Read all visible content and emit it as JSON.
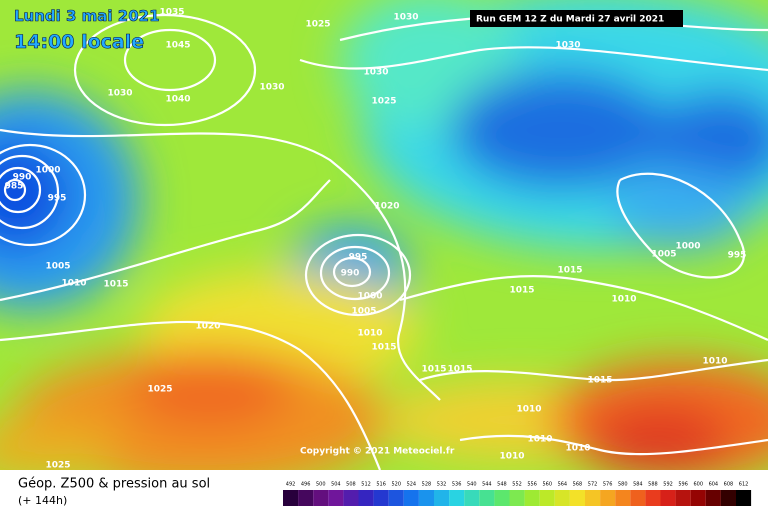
{
  "forecast": {
    "date": "Lundi 3 mai 2021",
    "time": "14:00 locale"
  },
  "run_info": "Run GEM 12 Z du Mardi 27 avril 2021",
  "copyright": "Copyright © 2021 Meteociel.fr",
  "footer": {
    "title": "Géop. Z500 & pression au sol",
    "subtitle": "(+ 144h)"
  },
  "legend": {
    "labels": [
      492,
      496,
      500,
      504,
      508,
      512,
      516,
      520,
      524,
      528,
      532,
      536,
      540,
      544,
      548,
      552,
      556,
      560,
      564,
      568,
      572,
      576,
      580,
      584,
      588,
      592,
      596,
      600,
      604,
      608,
      612
    ]
  },
  "isobar_labels": [
    "1035",
    "1025",
    "1030",
    "1045",
    "1030",
    "1030",
    "1040",
    "1030",
    "1030",
    "1025",
    "1000",
    "990",
    "985",
    "995",
    "1020",
    "995",
    "990",
    "1000",
    "1005",
    "1005",
    "1010",
    "1015",
    "1020",
    "1015",
    "1015",
    "1000",
    "1005",
    "995",
    "1010",
    "1010",
    "1015",
    "1015",
    "1015",
    "1015",
    "1010",
    "1010",
    "1010",
    "1010",
    "1010",
    "1025",
    "1025"
  ]
}
